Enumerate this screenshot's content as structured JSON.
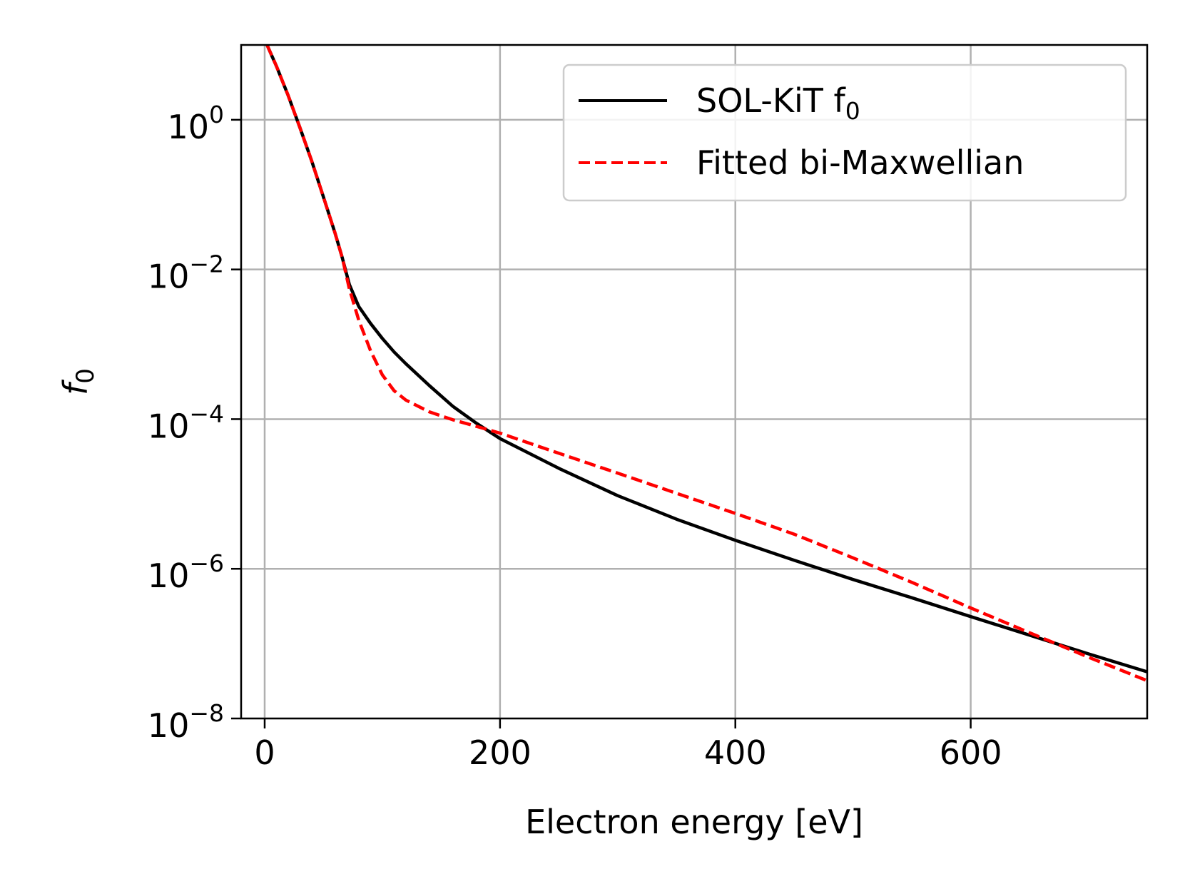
{
  "chart_data": {
    "type": "line",
    "title": "",
    "xlabel": "Electron energy [eV]",
    "ylabel_base": "f",
    "ylabel_sub": "0",
    "yscale": "log",
    "xlim": [
      -20,
      750
    ],
    "ylim": [
      1e-08,
      10
    ],
    "xticks": [
      0,
      200,
      400,
      600
    ],
    "xtick_labels": [
      "0",
      "200",
      "400",
      "600"
    ],
    "yticks": [
      1,
      0.01,
      0.0001,
      1e-06,
      1e-08
    ],
    "ytick_labels": [
      {
        "base": "10",
        "exp": "0"
      },
      {
        "base": "10",
        "exp": "−2"
      },
      {
        "base": "10",
        "exp": "−4"
      },
      {
        "base": "10",
        "exp": "−6"
      },
      {
        "base": "10",
        "exp": "−8"
      }
    ],
    "grid": true,
    "legend_position": "top-right",
    "series": [
      {
        "name": "SOL-KiT",
        "legend_base": "SOL-KiT f",
        "legend_sub": "0",
        "color": "#000000",
        "style": "solid",
        "x": [
          2,
          10,
          20,
          30,
          40,
          50,
          60,
          66,
          72,
          80,
          90,
          100,
          110,
          120,
          140,
          160,
          180,
          200,
          250,
          300,
          350,
          400,
          450,
          500,
          550,
          600,
          650,
          700,
          750
        ],
        "y": [
          10,
          5.2,
          2.1,
          0.78,
          0.28,
          0.092,
          0.03,
          0.0143,
          0.0063,
          0.0032,
          0.0019,
          0.0012,
          0.00079,
          0.00055,
          0.00028,
          0.000148,
          8.8e-05,
          5.5e-05,
          2.2e-05,
          9.5e-06,
          4.6e-06,
          2.4e-06,
          1.3e-06,
          7.2e-07,
          4.1e-07,
          2.3e-07,
          1.3e-07,
          7.3e-08,
          4.2e-08
        ]
      },
      {
        "name": "Fitted bi-Maxwellian",
        "legend_base": "Fitted bi-Maxwellian",
        "legend_sub": "",
        "color": "#ff0000",
        "style": "dashed",
        "x": [
          2,
          10,
          20,
          30,
          40,
          50,
          60,
          66,
          72,
          80,
          90,
          100,
          110,
          120,
          140,
          160,
          180,
          200,
          250,
          300,
          350,
          400,
          450,
          500,
          550,
          600,
          650,
          700,
          750
        ],
        "y": [
          10,
          5.2,
          2.1,
          0.78,
          0.28,
          0.092,
          0.03,
          0.0143,
          0.0055,
          0.0021,
          0.00082,
          0.00039,
          0.00024,
          0.00018,
          0.000125,
          9.8e-05,
          8e-05,
          6.5e-05,
          3.5e-05,
          1.9e-05,
          1.02e-05,
          5.5e-06,
          2.9e-06,
          1.4e-06,
          6.6e-07,
          3e-07,
          1.4e-07,
          6.6e-08,
          3.2e-08
        ]
      }
    ]
  }
}
